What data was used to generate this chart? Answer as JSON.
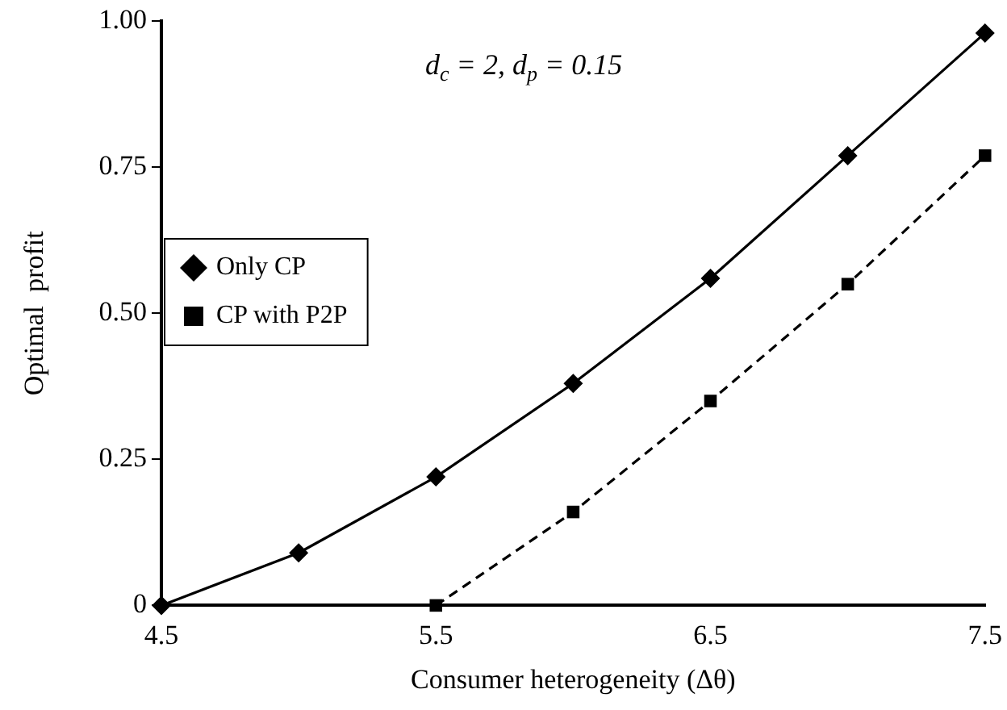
{
  "chart_data": {
    "type": "line",
    "xlabel": "Consumer heterogeneity (Δθ)",
    "ylabel": "Optimal  profit",
    "annotations": [
      "d$_{c}$ = 2, d$_{p}$ = 0.15"
    ],
    "xlim": [
      4.5,
      7.5
    ],
    "xticks": [
      4.5,
      5.5,
      6.5,
      7.5
    ],
    "ylim": [
      0,
      1
    ],
    "yticks": [
      0,
      0.25,
      {
        "value": 0.5,
        "label": "0.50"
      },
      0.75,
      {
        "value": 1,
        "label": "1.00"
      }
    ],
    "grid": false,
    "legend": "left",
    "series": [
      {
        "name": "Only CP",
        "color": "#000000",
        "marker": "diamond",
        "line_style": "solid",
        "x": [
          4.5,
          5.0,
          5.5,
          6.0,
          6.5,
          7.0,
          7.5
        ],
        "values": [
          0,
          0.09,
          0.22,
          0.38,
          0.56,
          0.77,
          0.98
        ]
      },
      {
        "name": "CP with P2P",
        "color": "#000000",
        "marker": "square",
        "line_style": "dashed",
        "x": [
          5.5,
          6.0,
          6.5,
          7.0,
          7.5
        ],
        "values": [
          0,
          0.16,
          0.35,
          0.55,
          0.77
        ]
      }
    ]
  }
}
